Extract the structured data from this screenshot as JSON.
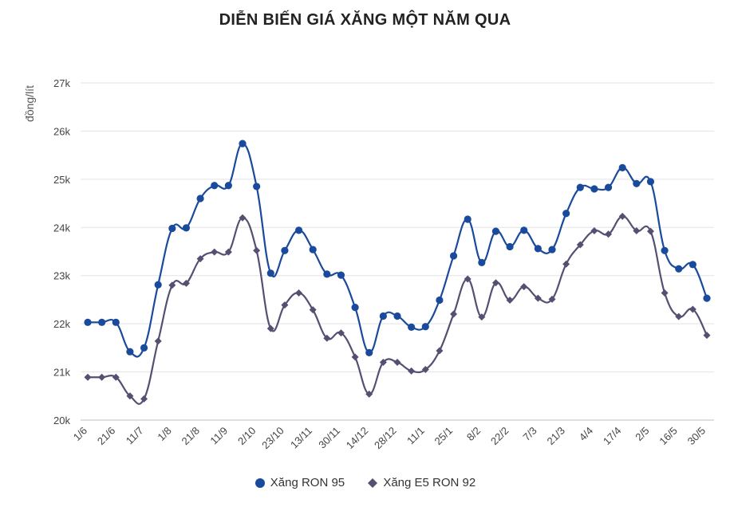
{
  "colors": {
    "ron95": "#1a4a9c",
    "e5": "#564f72",
    "grid": "#e3e3e3",
    "axis": "#bfbfbf"
  },
  "chart_data": {
    "type": "line",
    "title": "DIỄN BIẾN GIÁ XĂNG MỘT NĂM QUA",
    "ylabel": "đồng/lít",
    "xlabel": "",
    "ylim": [
      20000,
      27000
    ],
    "yticks": [
      20000,
      21000,
      22000,
      23000,
      24000,
      25000,
      26000,
      27000
    ],
    "ytick_labels": [
      "20k",
      "21k",
      "22k",
      "23k",
      "24k",
      "25k",
      "26k",
      "27k"
    ],
    "grid": true,
    "legend_position": "bottom",
    "x_tick_labels": [
      "1/6",
      "21/6",
      "11/7",
      "1/8",
      "21/8",
      "11/9",
      "2/10",
      "23/10",
      "13/11",
      "30/11",
      "14/12",
      "28/12",
      "11/1",
      "25/1",
      "8/2",
      "22/2",
      "7/3",
      "21/3",
      "4/4",
      "17/4",
      "2/5",
      "16/5",
      "30/5"
    ],
    "series": [
      {
        "name": "Xăng RON 95",
        "marker": "circle",
        "values": [
          22030,
          22030,
          22030,
          21420,
          21500,
          22810,
          23980,
          23990,
          24600,
          24870,
          24870,
          25740,
          24850,
          23050,
          23520,
          23940,
          23540,
          23030,
          23010,
          22340,
          21400,
          22160,
          22160,
          21930,
          21940,
          22490,
          23410,
          24170,
          23270,
          23920,
          23600,
          23940,
          23560,
          23540,
          24290,
          24830,
          24800,
          24830,
          25240,
          24910,
          24950,
          23520,
          23140,
          23230,
          22530
        ]
      },
      {
        "name": "Xăng E5 RON 92",
        "marker": "diamond",
        "values": [
          20890,
          20890,
          20890,
          20500,
          20440,
          21640,
          22800,
          22840,
          23350,
          23490,
          23490,
          24200,
          23520,
          21900,
          22390,
          22640,
          22290,
          21700,
          21810,
          21310,
          20540,
          21200,
          21200,
          21020,
          21050,
          21440,
          22200,
          22930,
          22140,
          22850,
          22490,
          22770,
          22530,
          22510,
          23240,
          23640,
          23930,
          23860,
          24230,
          23930,
          23920,
          22640,
          22150,
          22300,
          21760
        ]
      }
    ]
  }
}
